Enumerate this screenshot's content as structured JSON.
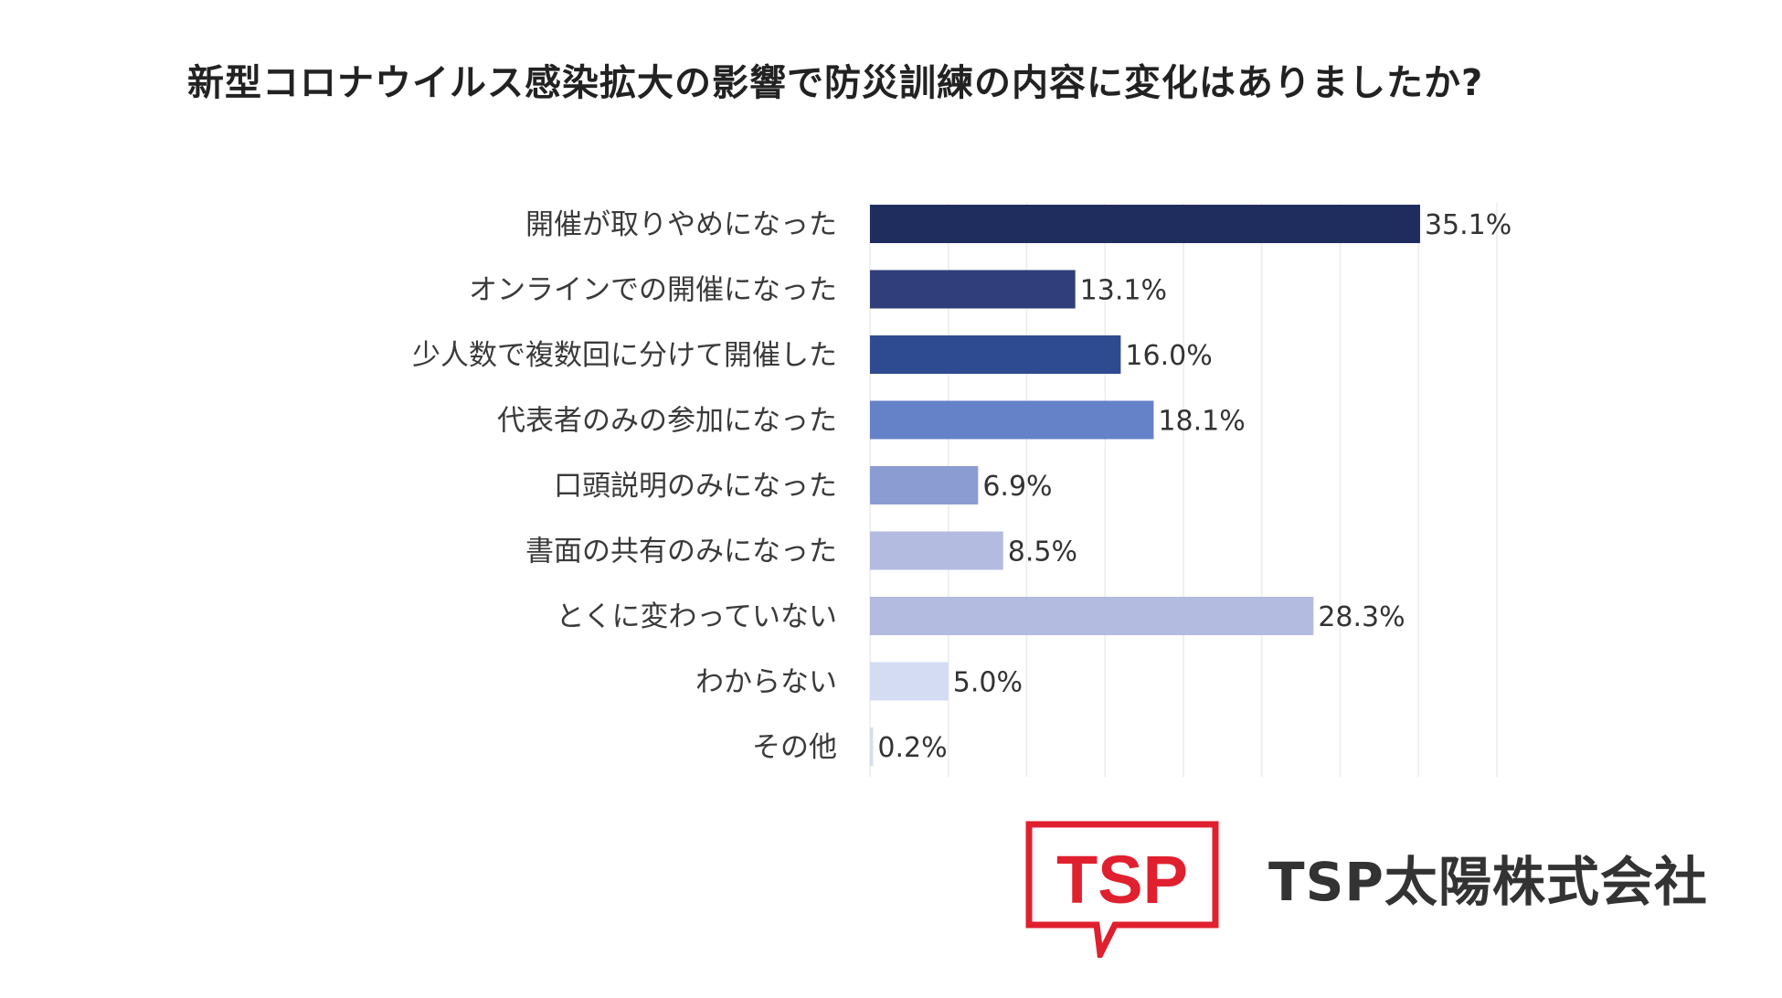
{
  "chart_data": {
    "type": "bar",
    "orientation": "horizontal",
    "title": "新型コロナウイルス感染拡大の影響で防災訓練の内容に変化はありましたか?",
    "xlabel": "",
    "ylabel": "",
    "xlim": [
      0,
      40
    ],
    "grid": true,
    "legend": "none",
    "categories": [
      "開催が取りやめになった",
      "オンラインでの開催になった",
      "少人数で複数回に分けて開催した",
      "代表者のみの参加になった",
      "口頭説明のみになった",
      "書面の共有のみになった",
      "とくに変わっていない",
      "わからない",
      "その他"
    ],
    "values": [
      35.1,
      13.1,
      16.0,
      18.1,
      6.9,
      8.5,
      28.3,
      5.0,
      0.2
    ],
    "value_labels": [
      "35.1%",
      "13.1%",
      "16.0%",
      "18.1%",
      "6.9%",
      "8.5%",
      "28.3%",
      "5.0%",
      "0.2%"
    ],
    "colors": [
      "#1f2c5e",
      "#303f7b",
      "#2e4a90",
      "#6581c7",
      "#8b9cd3",
      "#b3bbe0",
      "#b4bbe0",
      "#d3dcf2",
      "#d9dcee"
    ]
  },
  "brand": {
    "logo_text": "TSP",
    "logo_color": "#e0202e",
    "company_name": "TSP太陽株式会社"
  }
}
